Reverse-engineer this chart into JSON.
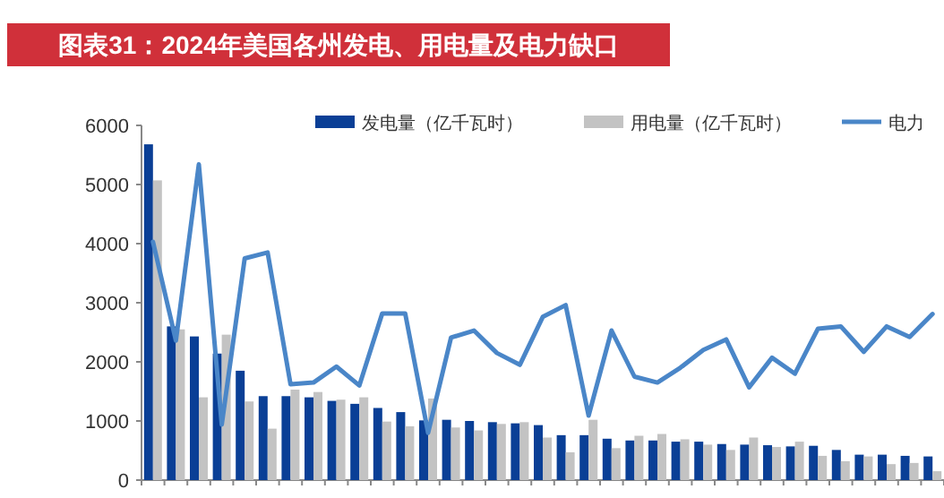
{
  "chart_data": {
    "type": "bar",
    "title": "图表31：2024年美国各州发电、用电量及电力缺口",
    "categories": [
      null,
      null,
      null,
      null,
      null,
      null,
      null,
      null,
      null,
      null,
      null,
      null,
      null,
      null,
      null,
      null,
      null,
      null,
      null,
      null,
      null,
      null,
      null,
      null,
      null,
      null,
      null,
      null,
      null,
      null,
      null,
      null,
      null,
      null,
      null
    ],
    "series": [
      {
        "name": "发电量（亿千瓦时）",
        "color": "#0a3f96",
        "values": [
          5680,
          2600,
          2430,
          2140,
          1850,
          1420,
          1420,
          1400,
          1340,
          1290,
          1220,
          1150,
          1010,
          1020,
          1000,
          980,
          960,
          930,
          760,
          760,
          700,
          670,
          670,
          650,
          650,
          610,
          600,
          590,
          570,
          580,
          510,
          430,
          430,
          410,
          400
        ]
      },
      {
        "name": "用电量（亿千瓦时）",
        "color": "#c3c3c3",
        "values": [
          5070,
          2550,
          1400,
          2460,
          1330,
          870,
          1530,
          1490,
          1360,
          1400,
          990,
          910,
          1380,
          890,
          840,
          950,
          980,
          720,
          470,
          1020,
          540,
          750,
          780,
          690,
          600,
          510,
          720,
          560,
          650,
          410,
          320,
          400,
          270,
          290,
          150
        ]
      },
      {
        "name": "电力",
        "type": "line",
        "color": "#4a86c8",
        "values": [
          4030,
          2360,
          5340,
          940,
          3750,
          3850,
          1620,
          1650,
          1920,
          1600,
          2820,
          2820,
          800,
          2410,
          2530,
          2150,
          1950,
          2760,
          2960,
          1090,
          2530,
          1750,
          1650,
          1900,
          2200,
          2380,
          1570,
          2070,
          1800,
          2560,
          2600,
          2170,
          2600,
          2420,
          2810
        ]
      }
    ],
    "ylim": [
      0,
      6000
    ],
    "yticks": [
      0,
      1000,
      2000,
      3000,
      4000,
      5000,
      6000
    ],
    "legend": "top"
  }
}
